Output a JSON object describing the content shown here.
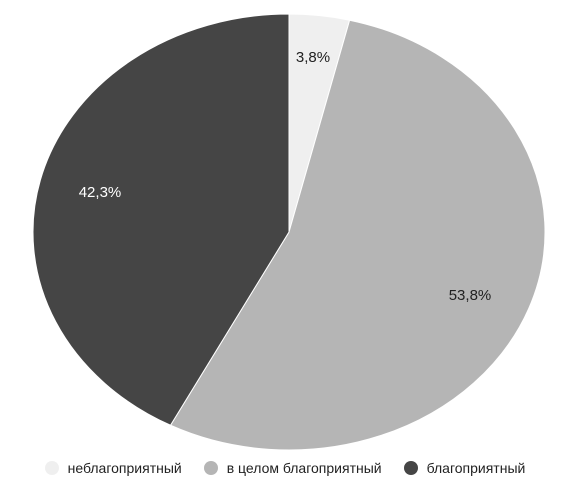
{
  "chart_data": {
    "type": "pie",
    "title": "",
    "slices": [
      {
        "name": "неблагоприятный",
        "value": 3.8,
        "label": "3,8%",
        "color": "#efefef",
        "label_color": "#222222"
      },
      {
        "name": "в целом благоприятный",
        "value": 53.8,
        "label": "53,8%",
        "color": "#b5b5b5",
        "label_color": "#222222"
      },
      {
        "name": "благоприятный",
        "value": 42.3,
        "label": "42,3%",
        "color": "#454545",
        "label_color": "#ffffff"
      }
    ],
    "start_angle": "12 o'clock",
    "direction": "clockwise",
    "legend_position": "bottom"
  }
}
